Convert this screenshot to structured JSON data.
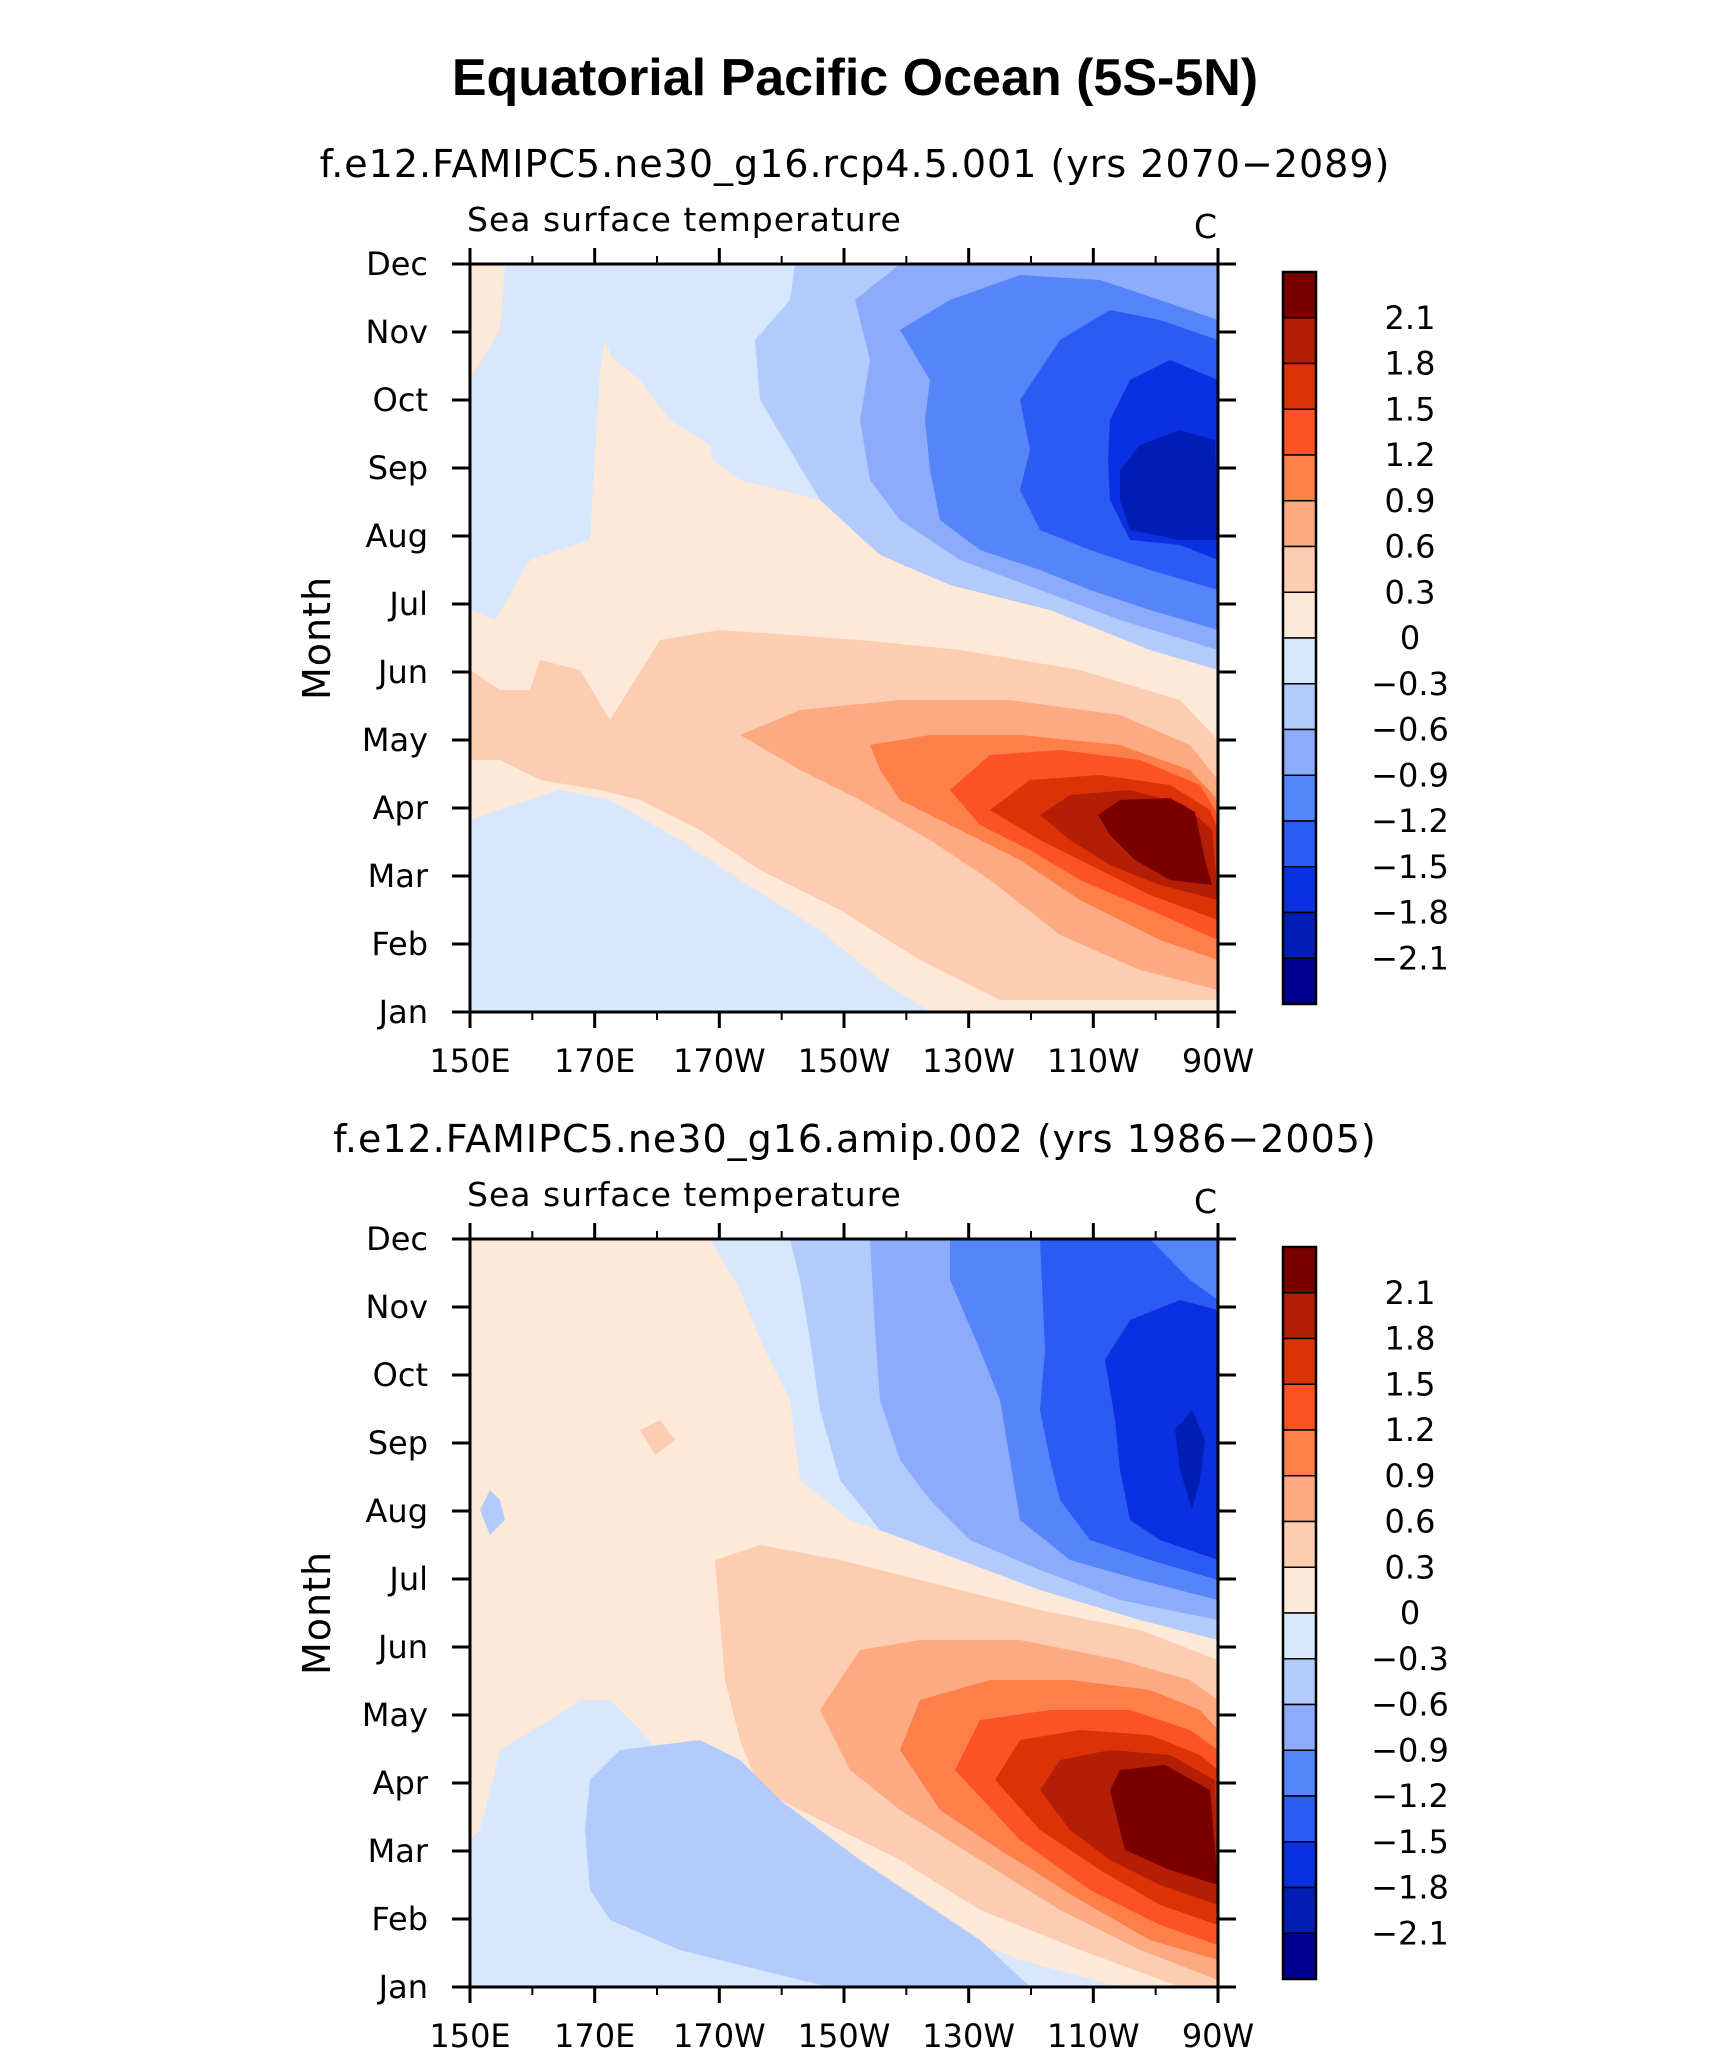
{
  "figure_title": "Equatorial Pacific Ocean (5S-5N)",
  "chart_data": [
    {
      "type": "heatmap",
      "title": "f.e12.FAMIPC5.ne30_g16.rcp4.5.001 (yrs 2070−2089)",
      "variable": "Sea surface temperature",
      "units": "C",
      "xlabel": "",
      "ylabel": "Month",
      "x_ticks": [
        "150E",
        "170E",
        "170W",
        "150W",
        "130W",
        "110W",
        "90W"
      ],
      "y_ticks": [
        "Jan",
        "Feb",
        "Mar",
        "Apr",
        "May",
        "Jun",
        "Jul",
        "Aug",
        "Sep",
        "Oct",
        "Nov",
        "Dec"
      ],
      "x_range": [
        "150E",
        "90W"
      ],
      "y_range": [
        "Jan",
        "Dec"
      ],
      "colorbar": {
        "levels": [
          "2.1",
          "1.8",
          "1.5",
          "1.2",
          "0.9",
          "0.6",
          "0.3",
          "0",
          "−0.3",
          "−0.6",
          "−0.9",
          "−1.2",
          "−1.5",
          "−1.8",
          "−2.1"
        ],
        "colors": [
          "#7a0000",
          "#b41e05",
          "#dd3208",
          "#fd5224",
          "#fd7f4a",
          "#fdaa83",
          "#fdcdb2",
          "#fee8d7",
          "#d7e8fc",
          "#b2cafc",
          "#8cacfb",
          "#5585f8",
          "#2a5bf4",
          "#0b30e2",
          "#001eb4",
          "#000092"
        ]
      },
      "annotations": {
        "warm_max": "> 2.1 near 95W, Mar–Apr",
        "cold_min": "< −1.8 near 95W, Aug–Sep"
      }
    },
    {
      "type": "heatmap",
      "title": "f.e12.FAMIPC5.ne30_g16.amip.002 (yrs 1986−2005)",
      "variable": "Sea surface temperature",
      "units": "C",
      "xlabel": "",
      "ylabel": "Month",
      "x_ticks": [
        "150E",
        "170E",
        "170W",
        "150W",
        "130W",
        "110W",
        "90W"
      ],
      "y_ticks": [
        "Jan",
        "Feb",
        "Mar",
        "Apr",
        "May",
        "Jun",
        "Jul",
        "Aug",
        "Sep",
        "Oct",
        "Nov",
        "Dec"
      ],
      "x_range": [
        "150E",
        "90W"
      ],
      "y_range": [
        "Jan",
        "Dec"
      ],
      "colorbar": {
        "levels": [
          "2.1",
          "1.8",
          "1.5",
          "1.2",
          "0.9",
          "0.6",
          "0.3",
          "0",
          "−0.3",
          "−0.6",
          "−0.9",
          "−1.2",
          "−1.5",
          "−1.8",
          "−2.1"
        ],
        "colors": [
          "#7a0000",
          "#b41e05",
          "#dd3208",
          "#fd5224",
          "#fd7f4a",
          "#fdaa83",
          "#fdcdb2",
          "#fee8d7",
          "#d7e8fc",
          "#b2cafc",
          "#8cacfb",
          "#5585f8",
          "#2a5bf4",
          "#0b30e2",
          "#001eb4",
          "#000092"
        ]
      },
      "annotations": {
        "warm_max": "> 2.1 near 95W, Mar–Apr",
        "cold_min": "< −1.8 near 95W, Aug–Sep"
      }
    }
  ]
}
